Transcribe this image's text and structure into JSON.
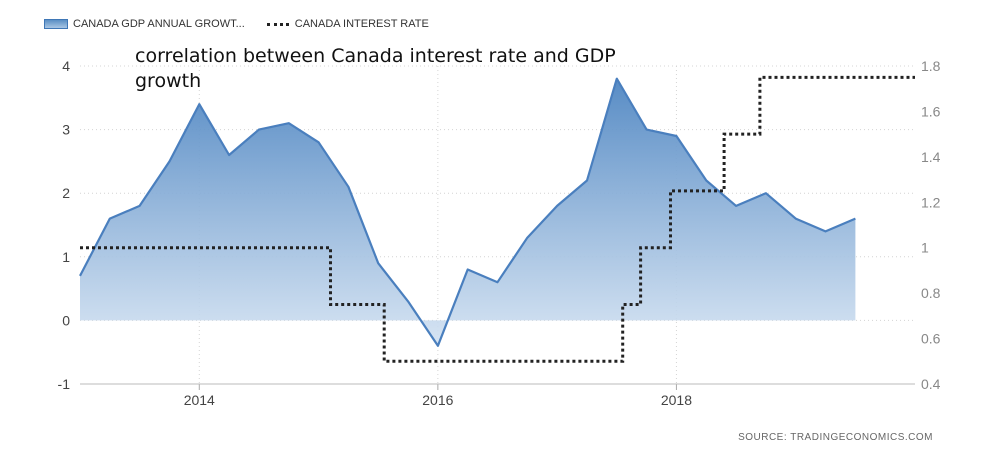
{
  "chart_data": {
    "type": "area",
    "title": "",
    "annotation": "correlation between Canada interest rate and GDP growth",
    "source": "SOURCE: TRADINGECONOMICS.COM",
    "x_ticks": [
      "2014",
      "2016",
      "2018"
    ],
    "y_left": {
      "ticks": [
        "-1",
        "0",
        "1",
        "2",
        "3",
        "4"
      ],
      "range": [
        -1,
        4
      ]
    },
    "y_right": {
      "ticks": [
        "0.4",
        "0.6",
        "0.8",
        "1",
        "1.2",
        "1.4",
        "1.6",
        "1.8"
      ],
      "range": [
        0.4,
        1.8
      ]
    },
    "x_range": [
      2013.0,
      2020.0
    ],
    "grid": true,
    "legend_position": "top-left",
    "series": [
      {
        "name": "CANADA GDP ANNUAL GROWT...",
        "axis": "left",
        "style": "area",
        "color": "#4a7fbe",
        "points": [
          [
            2013.0,
            0.7
          ],
          [
            2013.25,
            1.6
          ],
          [
            2013.5,
            1.8
          ],
          [
            2013.75,
            2.5
          ],
          [
            2014.0,
            3.4
          ],
          [
            2014.25,
            2.6
          ],
          [
            2014.5,
            3.0
          ],
          [
            2014.75,
            3.1
          ],
          [
            2015.0,
            2.8
          ],
          [
            2015.25,
            2.1
          ],
          [
            2015.5,
            0.9
          ],
          [
            2015.75,
            0.3
          ],
          [
            2016.0,
            -0.4
          ],
          [
            2016.25,
            0.8
          ],
          [
            2016.5,
            0.6
          ],
          [
            2016.75,
            1.3
          ],
          [
            2017.0,
            1.8
          ],
          [
            2017.25,
            2.2
          ],
          [
            2017.5,
            3.8
          ],
          [
            2017.75,
            3.0
          ],
          [
            2018.0,
            2.9
          ],
          [
            2018.25,
            2.2
          ],
          [
            2018.5,
            1.8
          ],
          [
            2018.75,
            2.0
          ],
          [
            2019.0,
            1.6
          ],
          [
            2019.25,
            1.4
          ],
          [
            2019.5,
            1.6
          ]
        ]
      },
      {
        "name": "CANADA INTEREST RATE",
        "axis": "right",
        "style": "dotted-step",
        "color": "#222222",
        "points": [
          [
            2013.0,
            1.0
          ],
          [
            2015.1,
            1.0
          ],
          [
            2015.1,
            0.75
          ],
          [
            2015.55,
            0.75
          ],
          [
            2015.55,
            0.5
          ],
          [
            2017.55,
            0.5
          ],
          [
            2017.55,
            0.75
          ],
          [
            2017.7,
            0.75
          ],
          [
            2017.7,
            1.0
          ],
          [
            2017.95,
            1.0
          ],
          [
            2017.95,
            1.25
          ],
          [
            2018.4,
            1.25
          ],
          [
            2018.4,
            1.5
          ],
          [
            2018.7,
            1.5
          ],
          [
            2018.7,
            1.75
          ],
          [
            2020.0,
            1.75
          ]
        ]
      }
    ]
  }
}
